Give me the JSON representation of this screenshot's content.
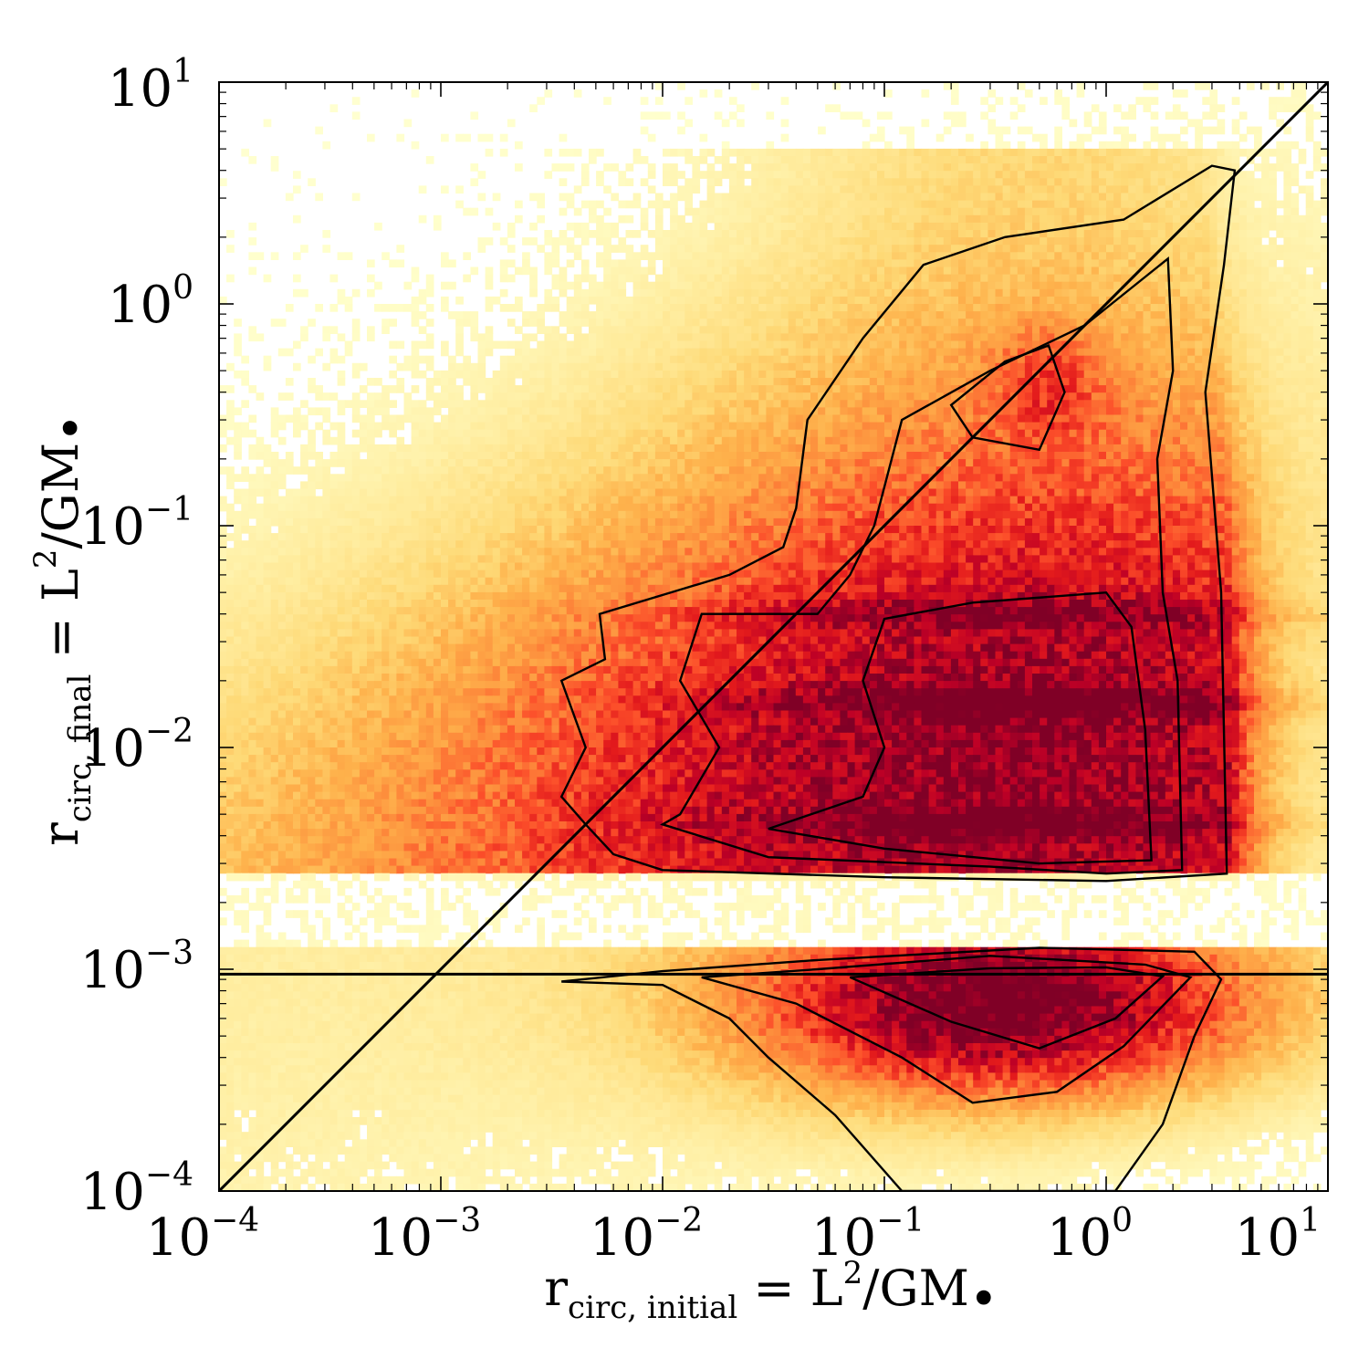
{
  "chart_data": {
    "type": "heatmap",
    "title": "",
    "xlabel": {
      "base": "r",
      "subscript": "circ, initial",
      "rest": " = L",
      "sup": "2",
      "tail": "/GM",
      "bullet": "•"
    },
    "ylabel": {
      "base": "r",
      "subscript": "circ, final",
      "rest": " = L",
      "sup": "2",
      "tail": "/GM",
      "bullet": "•"
    },
    "xscale": "log",
    "yscale": "log",
    "xlim": [
      0.0001,
      10
    ],
    "ylim": [
      0.0001,
      10
    ],
    "x_ticks": [
      {
        "value": 0.0001,
        "base": "10",
        "exp": "−4"
      },
      {
        "value": 0.001,
        "base": "10",
        "exp": "−3"
      },
      {
        "value": 0.01,
        "base": "10",
        "exp": "−2"
      },
      {
        "value": 0.1,
        "base": "10",
        "exp": "−1"
      },
      {
        "value": 1,
        "base": "10",
        "exp": "0"
      },
      {
        "value": 10,
        "base": "10",
        "exp": "1"
      }
    ],
    "y_ticks": [
      {
        "value": 0.0001,
        "base": "10",
        "exp": "−4"
      },
      {
        "value": 0.001,
        "base": "10",
        "exp": "−3"
      },
      {
        "value": 0.01,
        "base": "10",
        "exp": "−2"
      },
      {
        "value": 0.1,
        "base": "10",
        "exp": "−1"
      },
      {
        "value": 1,
        "base": "10",
        "exp": "0"
      },
      {
        "value": 10,
        "base": "10",
        "exp": "1"
      }
    ],
    "reference_lines": [
      {
        "type": "diagonal",
        "description": "y = x",
        "from": [
          0.0001,
          0.0001
        ],
        "to": [
          10,
          10
        ]
      },
      {
        "type": "horizontal",
        "y": 0.00095
      }
    ],
    "colormap": "YlOrRd (white → yellow → orange → red → dark red)",
    "colors": {
      "low": "#ffffcc",
      "mid": "#fd8d3c",
      "high": "#bd0026",
      "peak": "#800026"
    },
    "density_regions": [
      {
        "name": "upper-wedge",
        "x_range": [
          0.003,
          4.0
        ],
        "y_range": [
          0.0027,
          4.5
        ],
        "peak": [
          0.35,
          0.0042
        ]
      },
      {
        "name": "lower-lobe",
        "x_range": [
          0.003,
          3.5
        ],
        "y_range": [
          0.0001,
          0.0012
        ],
        "peak": [
          0.35,
          0.0007
        ]
      }
    ],
    "contour_levels": 3,
    "horizontal_bands_y": [
      0.0045,
      0.016,
      0.04
    ]
  }
}
